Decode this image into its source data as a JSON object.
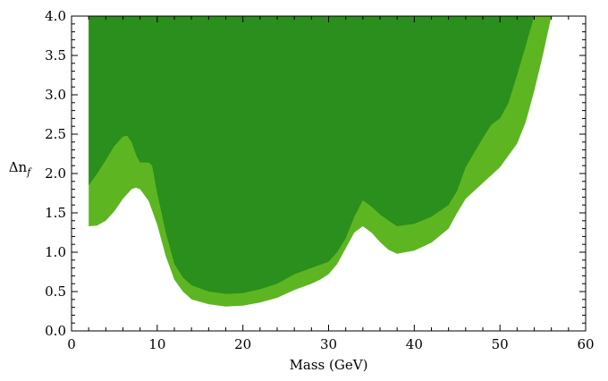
{
  "chart_data": {
    "type": "area",
    "xlabel": "Mass (GeV)",
    "ylabel_main": "Δn",
    "ylabel_sub": "f",
    "xlim": [
      0,
      60
    ],
    "ylim": [
      0.0,
      4.0
    ],
    "x_major_ticks": [
      0,
      10,
      20,
      30,
      40,
      50,
      60
    ],
    "x_tick_labels": [
      "0",
      "10",
      "20",
      "30",
      "40",
      "50",
      "60"
    ],
    "x_minor_step": 2,
    "y_major_ticks": [
      0.0,
      0.5,
      1.0,
      1.5,
      2.0,
      2.5,
      3.0,
      3.5,
      4.0
    ],
    "y_tick_labels": [
      "0.0",
      "0.5",
      "1.0",
      "1.5",
      "2.0",
      "2.5",
      "3.0",
      "3.5",
      "4.0"
    ],
    "y_minor_step": 0.1,
    "grid": false,
    "colors": {
      "outer_region": "#5db621",
      "inner_region": "#2a8f1c"
    },
    "series": [
      {
        "region": "outer",
        "boundary": [
          [
            2,
            4.0
          ],
          [
            2,
            1.33
          ],
          [
            3,
            1.34
          ],
          [
            4,
            1.4
          ],
          [
            5,
            1.52
          ],
          [
            6,
            1.68
          ],
          [
            7,
            1.8
          ],
          [
            7.5,
            1.82
          ],
          [
            8,
            1.8
          ],
          [
            9,
            1.65
          ],
          [
            10,
            1.35
          ],
          [
            11,
            0.95
          ],
          [
            12,
            0.65
          ],
          [
            13,
            0.5
          ],
          [
            14,
            0.4
          ],
          [
            16,
            0.34
          ],
          [
            18,
            0.31
          ],
          [
            20,
            0.32
          ],
          [
            22,
            0.36
          ],
          [
            24,
            0.42
          ],
          [
            26,
            0.52
          ],
          [
            28,
            0.6
          ],
          [
            29,
            0.65
          ],
          [
            30,
            0.72
          ],
          [
            31,
            0.85
          ],
          [
            32,
            1.05
          ],
          [
            33,
            1.25
          ],
          [
            34,
            1.33
          ],
          [
            35,
            1.25
          ],
          [
            36,
            1.13
          ],
          [
            37,
            1.03
          ],
          [
            38,
            0.98
          ],
          [
            40,
            1.02
          ],
          [
            42,
            1.12
          ],
          [
            44,
            1.3
          ],
          [
            45,
            1.5
          ],
          [
            46,
            1.68
          ],
          [
            48,
            1.88
          ],
          [
            50,
            2.08
          ],
          [
            52,
            2.38
          ],
          [
            53,
            2.65
          ],
          [
            54,
            3.05
          ],
          [
            55,
            3.5
          ],
          [
            56,
            4.0
          ]
        ]
      },
      {
        "region": "inner",
        "boundary": [
          [
            2,
            4.0
          ],
          [
            2,
            1.85
          ],
          [
            3,
            2.0
          ],
          [
            4,
            2.17
          ],
          [
            5,
            2.35
          ],
          [
            6,
            2.47
          ],
          [
            6.5,
            2.48
          ],
          [
            7,
            2.4
          ],
          [
            7.6,
            2.22
          ],
          [
            8,
            2.14
          ],
          [
            9,
            2.14
          ],
          [
            9.4,
            2.1
          ],
          [
            10,
            1.75
          ],
          [
            11,
            1.25
          ],
          [
            12,
            0.85
          ],
          [
            13,
            0.68
          ],
          [
            14,
            0.58
          ],
          [
            16,
            0.5
          ],
          [
            18,
            0.47
          ],
          [
            20,
            0.48
          ],
          [
            22,
            0.53
          ],
          [
            24,
            0.6
          ],
          [
            26,
            0.72
          ],
          [
            28,
            0.8
          ],
          [
            30,
            0.88
          ],
          [
            31,
            1.0
          ],
          [
            32,
            1.18
          ],
          [
            33,
            1.45
          ],
          [
            34,
            1.66
          ],
          [
            35,
            1.58
          ],
          [
            36,
            1.48
          ],
          [
            37,
            1.4
          ],
          [
            38,
            1.33
          ],
          [
            40,
            1.36
          ],
          [
            42,
            1.45
          ],
          [
            44,
            1.6
          ],
          [
            45,
            1.78
          ],
          [
            46,
            2.08
          ],
          [
            48,
            2.45
          ],
          [
            49,
            2.62
          ],
          [
            50,
            2.7
          ],
          [
            51,
            2.9
          ],
          [
            52,
            3.25
          ],
          [
            53,
            3.62
          ],
          [
            54,
            4.0
          ]
        ]
      }
    ]
  }
}
